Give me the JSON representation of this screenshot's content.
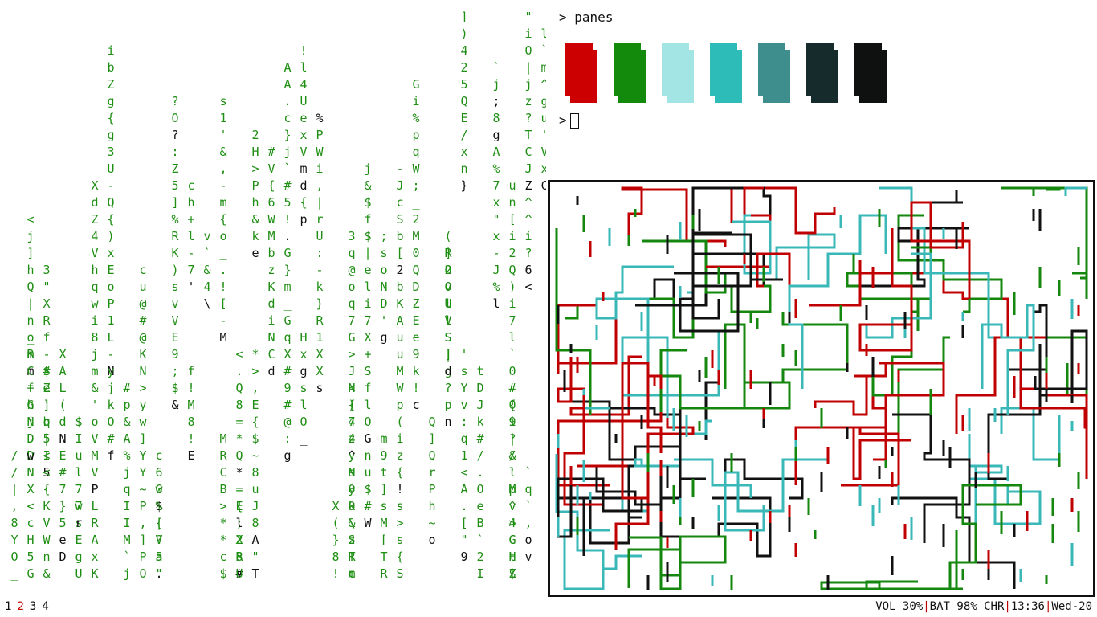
{
  "terminal": {
    "prompt_symbol": ">",
    "command": "panes",
    "swatch_colors": [
      "#cc0000",
      "#138a0c",
      "#a3e5e5",
      "#2ebcb8",
      "#3e8e8e",
      "#162c2c",
      "#0f1010"
    ]
  },
  "workspaces": [
    {
      "label": "1",
      "active": false
    },
    {
      "label": "2",
      "active": true
    },
    {
      "label": "3",
      "active": false
    },
    {
      "label": "4",
      "active": false
    }
  ],
  "status": {
    "volume": "VOL 30%",
    "battery": "BAT 98% CHR",
    "time": "13:36",
    "date": "Wed-20"
  },
  "colors": {
    "matrix_green": "#1f8f14",
    "matrix_highlight": "#111111",
    "pipe_red": "#c00000",
    "pipe_green": "#16870e",
    "pipe_teal": "#3ab8b8",
    "pipe_black": "#111111",
    "active_workspace": "#c00000"
  }
}
